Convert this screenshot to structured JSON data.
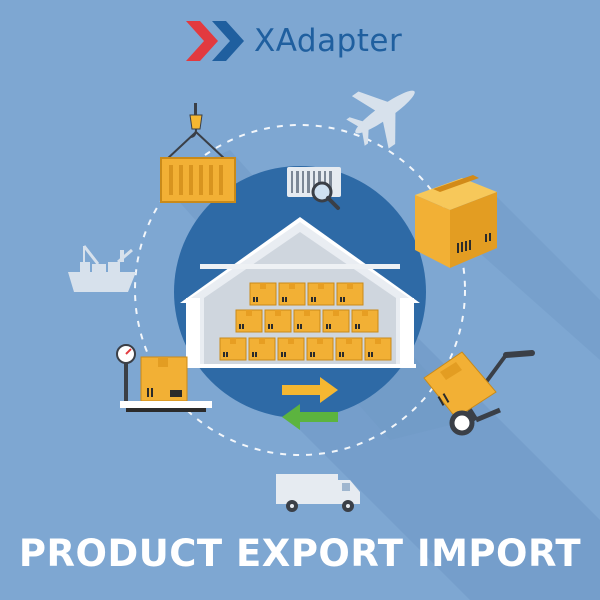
{
  "brand": {
    "name": "XAdapter",
    "logo_icon": "x-chevron-logo-icon"
  },
  "headline": "PRODUCT EXPORT IMPORT",
  "illustration": {
    "icons": [
      "crane-container-icon",
      "airplane-icon",
      "barcode-search-icon",
      "cardboard-box-icon",
      "cargo-ship-icon",
      "warehouse-icon",
      "weighing-scale-icon",
      "hand-truck-icon",
      "export-import-arrows-icon",
      "delivery-truck-icon"
    ]
  },
  "colors": {
    "background": "#7ea7d2",
    "circle": "#2e6aa6",
    "box": "#f2b035",
    "arrow_export": "#f5b731",
    "arrow_import": "#5cb43f",
    "logo_red": "#e23a3f",
    "logo_blue": "#1f5f9f",
    "headline": "#ffffff"
  }
}
